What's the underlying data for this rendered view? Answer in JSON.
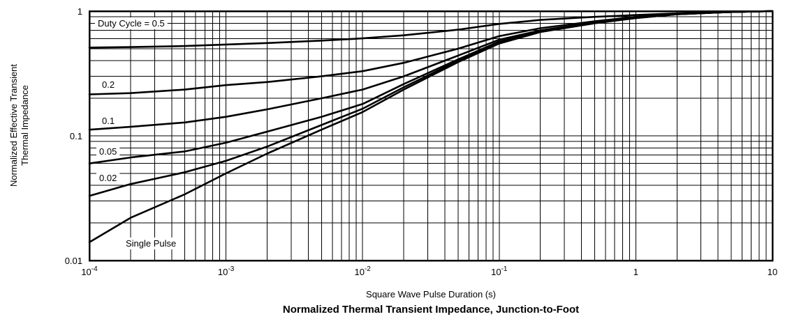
{
  "chart_data": {
    "type": "line",
    "title": "Normalized Thermal Transient Impedance, Junction-to-Foot",
    "xlabel": "Square Wave Pulse Duration (s)",
    "ylabel": [
      "Normalized Effective Transient",
      "Thermal Impedance"
    ],
    "xscale": "log",
    "yscale": "log",
    "xlim": [
      0.0001,
      10
    ],
    "ylim": [
      0.01,
      1
    ],
    "grid": true,
    "x_ticks": [
      {
        "base": "10",
        "exp": "-4",
        "text": ""
      },
      {
        "base": "10",
        "exp": "-3",
        "text": ""
      },
      {
        "base": "10",
        "exp": "-2",
        "text": ""
      },
      {
        "base": "10",
        "exp": "-1",
        "text": ""
      },
      {
        "base": "",
        "exp": "",
        "text": "1"
      },
      {
        "base": "",
        "exp": "",
        "text": "10"
      }
    ],
    "y_ticks": [
      "0.01",
      "0.1",
      "1"
    ],
    "x": [
      0.0001,
      0.0002,
      0.0005,
      0.001,
      0.002,
      0.005,
      0.01,
      0.02,
      0.05,
      0.1,
      0.2,
      0.5,
      1,
      2,
      5,
      10
    ],
    "series": [
      {
        "name": "Duty Cycle = 0.5",
        "values": [
          0.51,
          0.515,
          0.525,
          0.54,
          0.555,
          0.58,
          0.605,
          0.64,
          0.71,
          0.79,
          0.85,
          0.9,
          0.93,
          0.96,
          0.985,
          1.0
        ]
      },
      {
        "name": "0.2",
        "values": [
          0.215,
          0.22,
          0.235,
          0.255,
          0.27,
          0.3,
          0.33,
          0.385,
          0.5,
          0.63,
          0.73,
          0.83,
          0.9,
          0.95,
          0.985,
          1.0
        ]
      },
      {
        "name": "0.1",
        "values": [
          0.112,
          0.118,
          0.128,
          0.142,
          0.163,
          0.2,
          0.235,
          0.3,
          0.44,
          0.59,
          0.7,
          0.81,
          0.89,
          0.95,
          0.985,
          1.0
        ]
      },
      {
        "name": "0.05",
        "values": [
          0.06,
          0.067,
          0.075,
          0.088,
          0.108,
          0.142,
          0.18,
          0.26,
          0.41,
          0.57,
          0.69,
          0.805,
          0.885,
          0.945,
          0.985,
          1.0
        ]
      },
      {
        "name": "0.02",
        "values": [
          0.033,
          0.041,
          0.051,
          0.063,
          0.082,
          0.122,
          0.165,
          0.245,
          0.4,
          0.56,
          0.685,
          0.8,
          0.88,
          0.945,
          0.985,
          1.0
        ]
      },
      {
        "name": "Single Pulse",
        "values": [
          0.014,
          0.022,
          0.034,
          0.05,
          0.072,
          0.112,
          0.155,
          0.235,
          0.39,
          0.55,
          0.68,
          0.8,
          0.88,
          0.945,
          0.985,
          1.0
        ]
      }
    ]
  }
}
